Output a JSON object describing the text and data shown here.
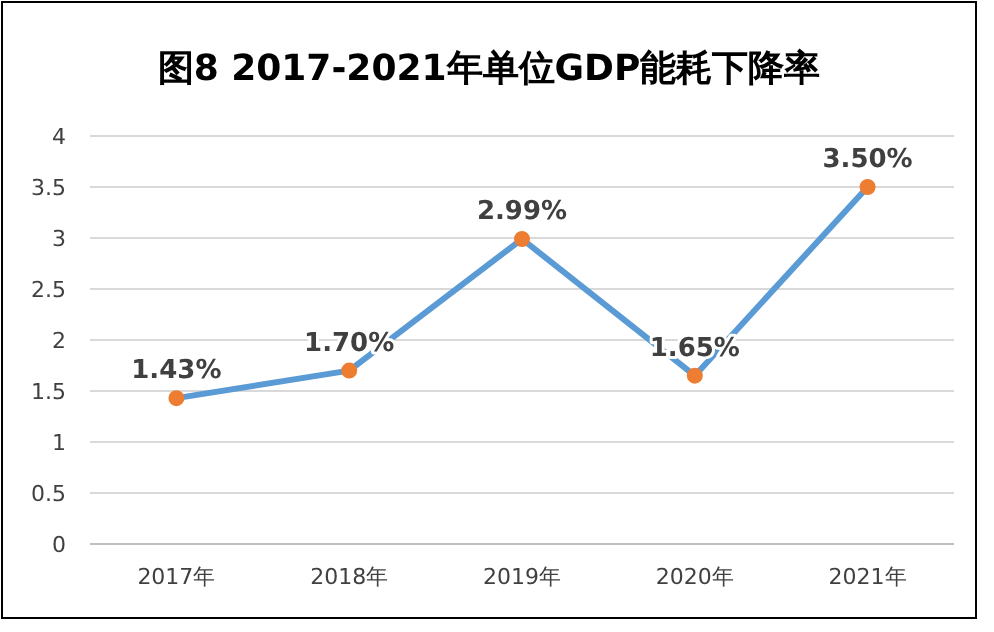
{
  "chart_data": {
    "type": "line",
    "title": "图8 2017-2021年单位GDP能耗下降率",
    "categories": [
      "2017年",
      "2018年",
      "2019年",
      "2020年",
      "2021年"
    ],
    "series": [
      {
        "color": "#5b9bd5",
        "values": [
          1.43,
          1.7,
          2.99,
          1.65,
          3.5
        ],
        "value_labels": [
          "1.43%",
          "1.70%",
          "2.99%",
          "1.65%",
          "3.50%"
        ]
      }
    ],
    "ylim": [
      0,
      4
    ],
    "yticks": [
      0,
      {
        "value": 0.5,
        "label": "0.5"
      },
      1,
      {
        "value": 1.5,
        "label": "1.5"
      },
      2,
      {
        "value": 2.5,
        "label": "2.5"
      },
      3,
      {
        "value": 3.5,
        "label": "3.5"
      },
      4
    ],
    "grid": "y",
    "marker": "circle",
    "line_style": "solid"
  }
}
